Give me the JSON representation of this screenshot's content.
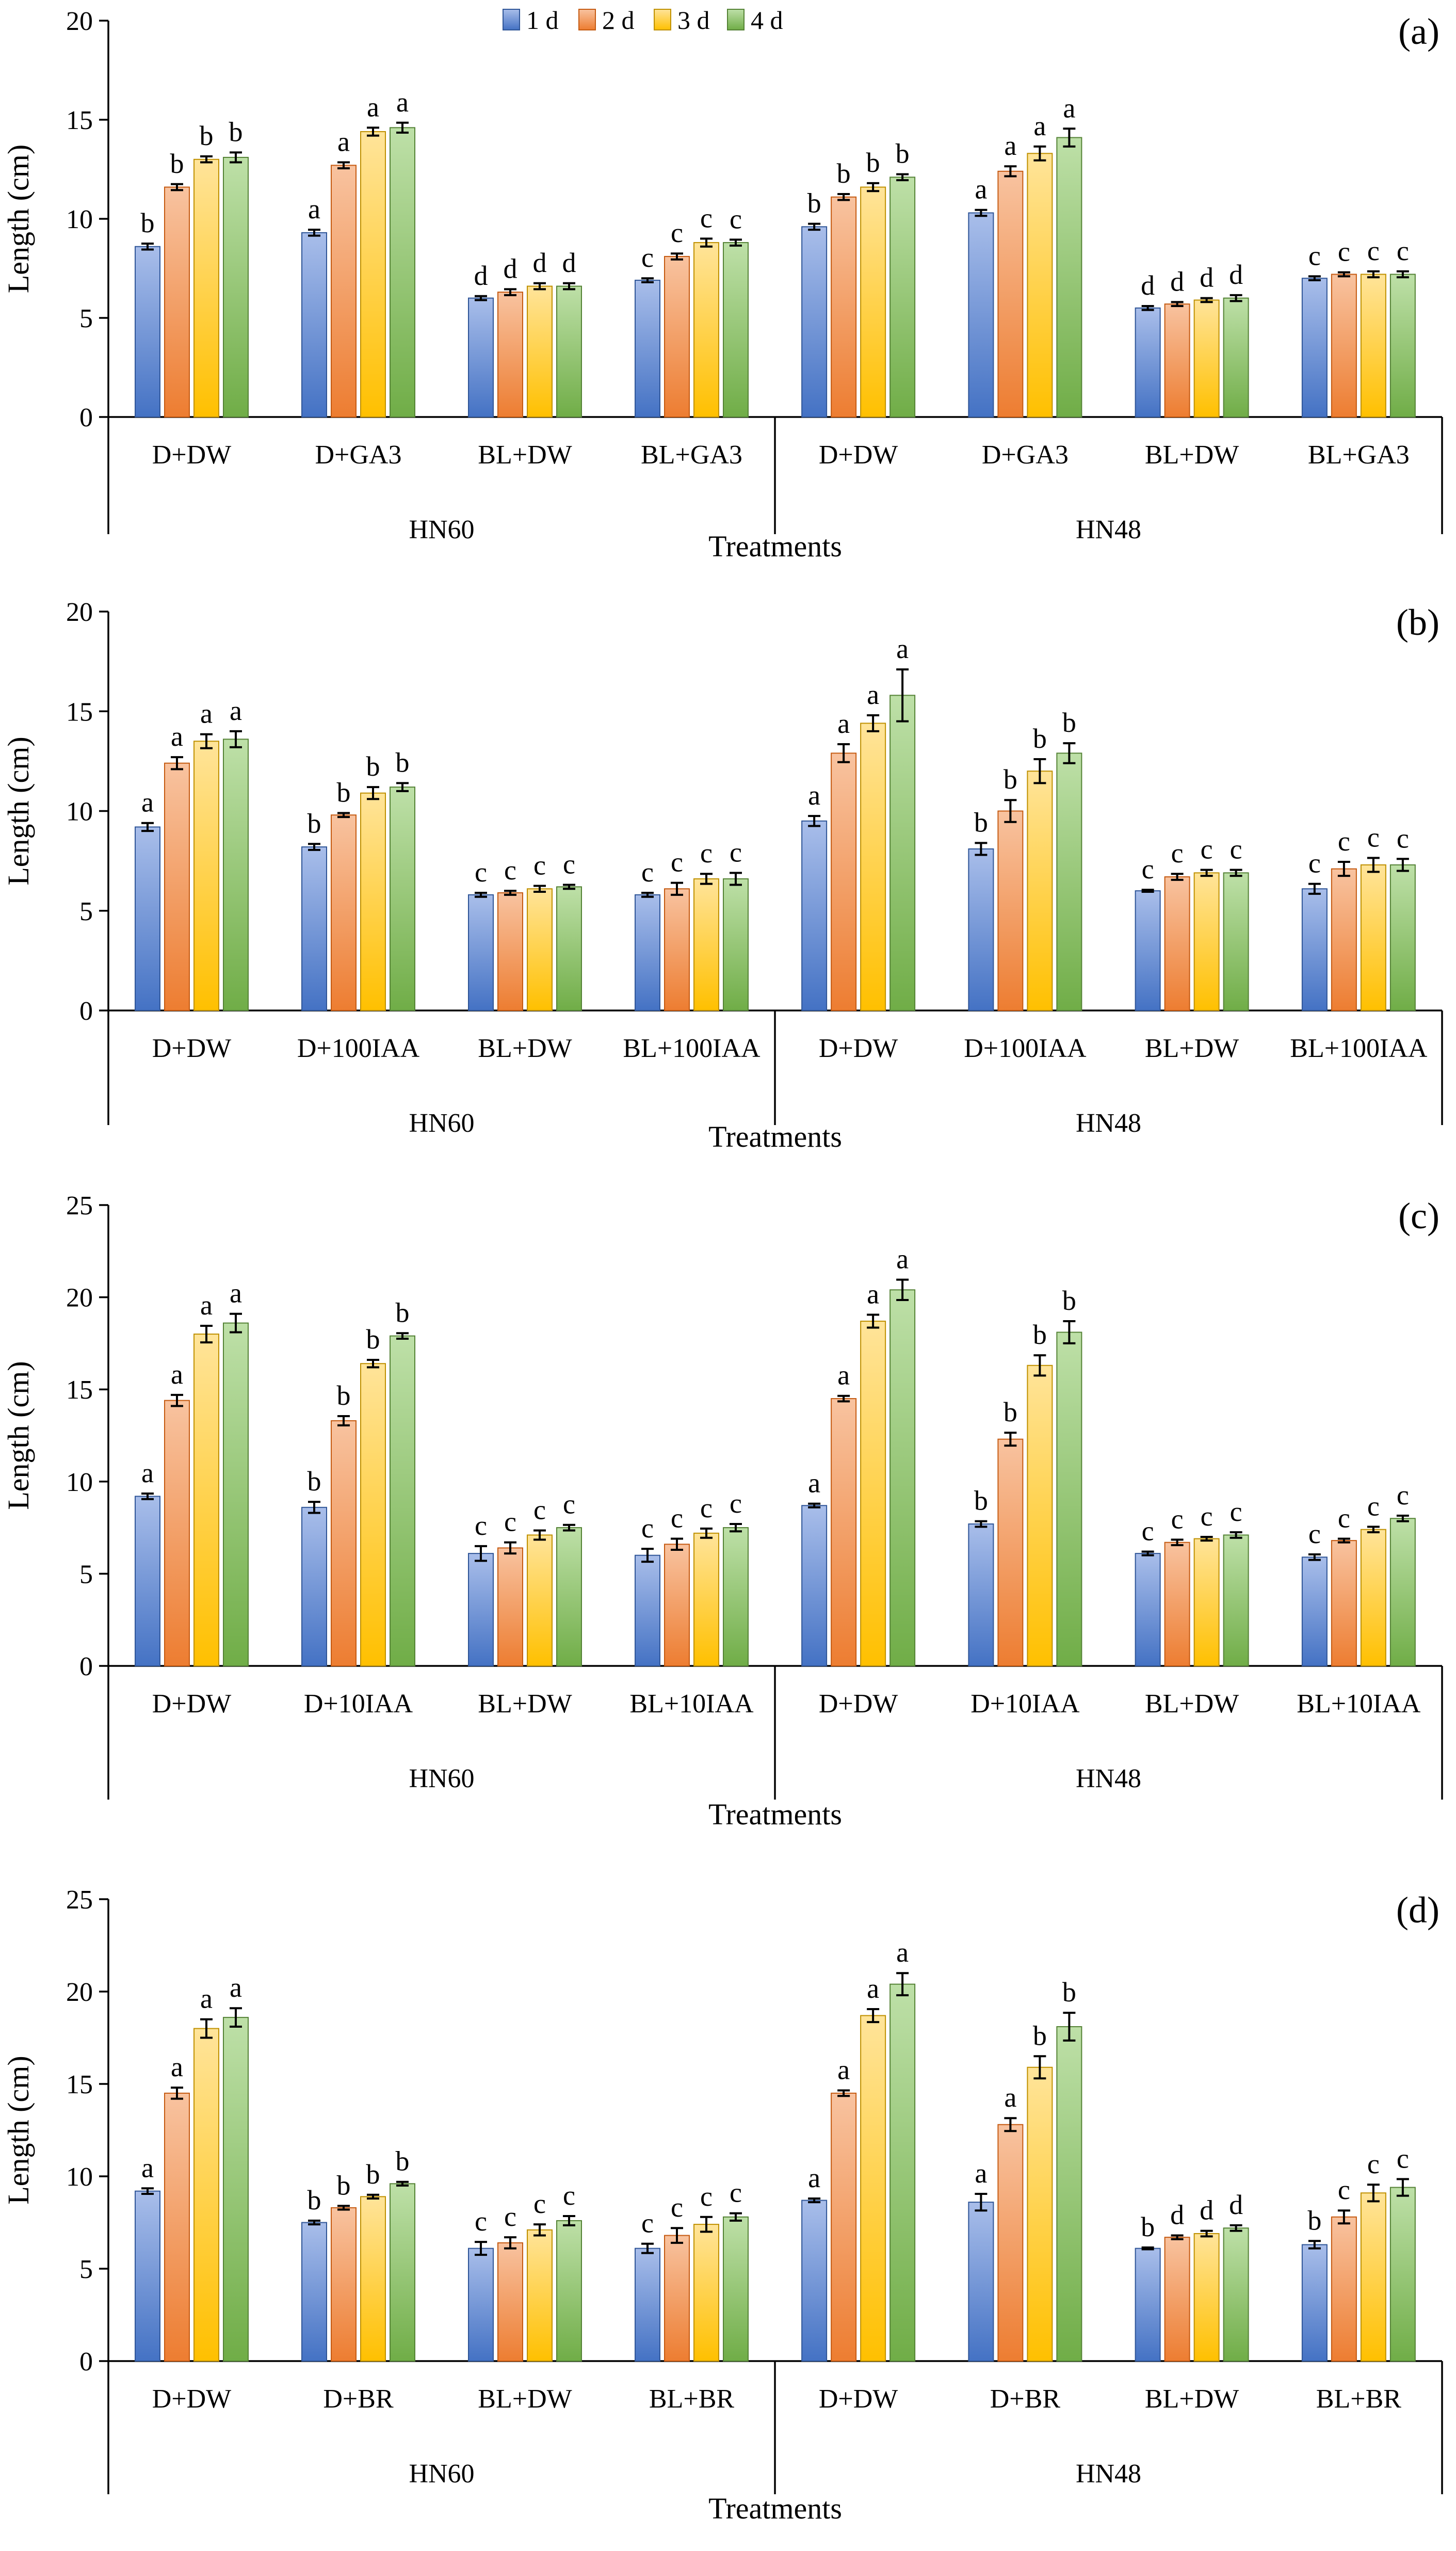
{
  "legend": {
    "entries": [
      {
        "label": "1 d",
        "color": "#4472C4",
        "light": "#A9BEEA"
      },
      {
        "label": "2 d",
        "color": "#ED7D31",
        "light": "#F8C3A0"
      },
      {
        "label": "3 d",
        "color": "#FFC000",
        "light": "#FFE49A"
      },
      {
        "label": "4 d",
        "color": "#70AD47",
        "light": "#BEE0A8"
      }
    ]
  },
  "chart_data": [
    {
      "type": "bar",
      "panel": "(a)",
      "ylabel": "Length (cm)",
      "xlabel": "Treatments",
      "ylim": [
        0,
        20
      ],
      "yticks": [
        0,
        5,
        10,
        15,
        20
      ],
      "groups": [
        "HN60",
        "HN48"
      ],
      "categories": [
        "D+DW",
        "D+GA3",
        "BL+DW",
        "BL+GA3",
        "D+DW",
        "D+GA3",
        "BL+DW",
        "BL+GA3"
      ],
      "series": [
        {
          "name": "1 d",
          "values": [
            8.6,
            9.3,
            6.0,
            6.9,
            9.6,
            10.3,
            5.5,
            7.0
          ],
          "errors": [
            0.15,
            0.15,
            0.1,
            0.1,
            0.15,
            0.15,
            0.1,
            0.1
          ],
          "letters": [
            "b",
            "a",
            "d",
            "c",
            "b",
            "a",
            "d",
            "c"
          ]
        },
        {
          "name": "2 d",
          "values": [
            11.6,
            12.7,
            6.3,
            8.1,
            11.1,
            12.4,
            5.7,
            7.2
          ],
          "errors": [
            0.15,
            0.15,
            0.15,
            0.15,
            0.15,
            0.25,
            0.1,
            0.1
          ],
          "letters": [
            "b",
            "a",
            "d",
            "c",
            "b",
            "a",
            "d",
            "c"
          ]
        },
        {
          "name": "3 d",
          "values": [
            13.0,
            14.4,
            6.6,
            8.8,
            11.6,
            13.3,
            5.9,
            7.2
          ],
          "errors": [
            0.15,
            0.2,
            0.15,
            0.2,
            0.2,
            0.35,
            0.1,
            0.15
          ],
          "letters": [
            "b",
            "a",
            "d",
            "c",
            "b",
            "a",
            "d",
            "c"
          ]
        },
        {
          "name": "4 d",
          "values": [
            13.1,
            14.6,
            6.6,
            8.8,
            12.1,
            14.1,
            6.0,
            7.2
          ],
          "errors": [
            0.25,
            0.25,
            0.15,
            0.15,
            0.15,
            0.45,
            0.15,
            0.15
          ],
          "letters": [
            "b",
            "a",
            "d",
            "c",
            "b",
            "a",
            "d",
            "c"
          ]
        }
      ]
    },
    {
      "type": "bar",
      "panel": "(b)",
      "ylabel": "Length (cm)",
      "xlabel": "Treatments",
      "ylim": [
        0,
        20
      ],
      "yticks": [
        0,
        5,
        10,
        15,
        20
      ],
      "groups": [
        "HN60",
        "HN48"
      ],
      "categories": [
        "D+DW",
        "D+100IAA",
        "BL+DW",
        "BL+100IAA",
        "D+DW",
        "D+100IAA",
        "BL+DW",
        "BL+100IAA"
      ],
      "series": [
        {
          "name": "1 d",
          "values": [
            9.2,
            8.2,
            5.8,
            5.8,
            9.5,
            8.1,
            6.0,
            6.1
          ],
          "errors": [
            0.2,
            0.15,
            0.1,
            0.1,
            0.25,
            0.3,
            0.05,
            0.25
          ],
          "letters": [
            "a",
            "b",
            "c",
            "c",
            "a",
            "b",
            "c",
            "c"
          ]
        },
        {
          "name": "2 d",
          "values": [
            12.4,
            9.8,
            5.9,
            6.1,
            12.9,
            10.0,
            6.7,
            7.1
          ],
          "errors": [
            0.3,
            0.1,
            0.1,
            0.3,
            0.45,
            0.55,
            0.15,
            0.35
          ],
          "letters": [
            "a",
            "b",
            "c",
            "c",
            "a",
            "b",
            "c",
            "c"
          ]
        },
        {
          "name": "3 d",
          "values": [
            13.5,
            10.9,
            6.1,
            6.6,
            14.4,
            12.0,
            6.9,
            7.3
          ],
          "errors": [
            0.35,
            0.3,
            0.15,
            0.25,
            0.4,
            0.6,
            0.15,
            0.35
          ],
          "letters": [
            "a",
            "b",
            "c",
            "c",
            "a",
            "b",
            "c",
            "c"
          ]
        },
        {
          "name": "4 d",
          "values": [
            13.6,
            11.2,
            6.2,
            6.6,
            15.8,
            12.9,
            6.9,
            7.3
          ],
          "errors": [
            0.4,
            0.2,
            0.1,
            0.3,
            1.3,
            0.5,
            0.15,
            0.3
          ],
          "letters": [
            "a",
            "b",
            "c",
            "c",
            "a",
            "b",
            "c",
            "c"
          ]
        }
      ]
    },
    {
      "type": "bar",
      "panel": "(c)",
      "ylabel": "Length (cm)",
      "xlabel": "Treatments",
      "ylim": [
        0,
        25
      ],
      "yticks": [
        0,
        5,
        10,
        15,
        20,
        25
      ],
      "groups": [
        "HN60",
        "HN48"
      ],
      "categories": [
        "D+DW",
        "D+10IAA",
        "BL+DW",
        "BL+10IAA",
        "D+DW",
        "D+10IAA",
        "BL+DW",
        "BL+10IAA"
      ],
      "series": [
        {
          "name": "1 d",
          "values": [
            9.2,
            8.6,
            6.1,
            6.0,
            8.7,
            7.7,
            6.1,
            5.9
          ],
          "errors": [
            0.15,
            0.3,
            0.4,
            0.35,
            0.1,
            0.15,
            0.1,
            0.15
          ],
          "letters": [
            "a",
            "b",
            "c",
            "c",
            "a",
            "b",
            "c",
            "c"
          ]
        },
        {
          "name": "2 d",
          "values": [
            14.4,
            13.3,
            6.4,
            6.6,
            14.5,
            12.3,
            6.7,
            6.8
          ],
          "errors": [
            0.3,
            0.25,
            0.3,
            0.3,
            0.15,
            0.35,
            0.15,
            0.1
          ],
          "letters": [
            "a",
            "b",
            "c",
            "c",
            "a",
            "b",
            "c",
            "c"
          ]
        },
        {
          "name": "3 d",
          "values": [
            18.0,
            16.4,
            7.1,
            7.2,
            18.7,
            16.3,
            6.9,
            7.4
          ],
          "errors": [
            0.45,
            0.2,
            0.25,
            0.25,
            0.35,
            0.55,
            0.1,
            0.15
          ],
          "letters": [
            "a",
            "b",
            "c",
            "c",
            "a",
            "b",
            "c",
            "c"
          ]
        },
        {
          "name": "4 d",
          "values": [
            18.6,
            17.9,
            7.5,
            7.5,
            20.4,
            18.1,
            7.1,
            8.0
          ],
          "errors": [
            0.5,
            0.15,
            0.15,
            0.2,
            0.55,
            0.6,
            0.15,
            0.15
          ],
          "letters": [
            "a",
            "b",
            "c",
            "c",
            "a",
            "b",
            "c",
            "c"
          ]
        }
      ]
    },
    {
      "type": "bar",
      "panel": "(d)",
      "ylabel": "Length (cm)",
      "xlabel": "Treatments",
      "ylim": [
        0,
        25
      ],
      "yticks": [
        0,
        5,
        10,
        15,
        20,
        25
      ],
      "groups": [
        "HN60",
        "HN48"
      ],
      "categories": [
        "D+DW",
        "D+BR",
        "BL+DW",
        "BL+BR",
        "D+DW",
        "D+BR",
        "BL+DW",
        "BL+BR"
      ],
      "series": [
        {
          "name": "1 d",
          "values": [
            9.2,
            7.5,
            6.1,
            6.1,
            8.7,
            8.6,
            6.1,
            6.3
          ],
          "errors": [
            0.15,
            0.1,
            0.35,
            0.25,
            0.1,
            0.45,
            0.05,
            0.2
          ],
          "letters": [
            "a",
            "b",
            "c",
            "c",
            "a",
            "a",
            "b",
            "b"
          ]
        },
        {
          "name": "2 d",
          "values": [
            14.5,
            8.3,
            6.4,
            6.8,
            14.5,
            12.8,
            6.7,
            7.8
          ],
          "errors": [
            0.3,
            0.1,
            0.3,
            0.4,
            0.15,
            0.35,
            0.1,
            0.35
          ],
          "letters": [
            "a",
            "b",
            "c",
            "c",
            "a",
            "a",
            "d",
            "c"
          ]
        },
        {
          "name": "3 d",
          "values": [
            18.0,
            8.9,
            7.1,
            7.4,
            18.7,
            15.9,
            6.9,
            9.1
          ],
          "errors": [
            0.5,
            0.1,
            0.3,
            0.4,
            0.35,
            0.6,
            0.15,
            0.45
          ],
          "letters": [
            "a",
            "b",
            "c",
            "c",
            "a",
            "b",
            "d",
            "c"
          ]
        },
        {
          "name": "4 d",
          "values": [
            18.6,
            9.6,
            7.6,
            7.8,
            20.4,
            18.1,
            7.2,
            9.4
          ],
          "errors": [
            0.5,
            0.1,
            0.25,
            0.2,
            0.6,
            0.75,
            0.15,
            0.45
          ],
          "letters": [
            "a",
            "b",
            "c",
            "c",
            "a",
            "b",
            "d",
            "c"
          ]
        }
      ]
    }
  ]
}
